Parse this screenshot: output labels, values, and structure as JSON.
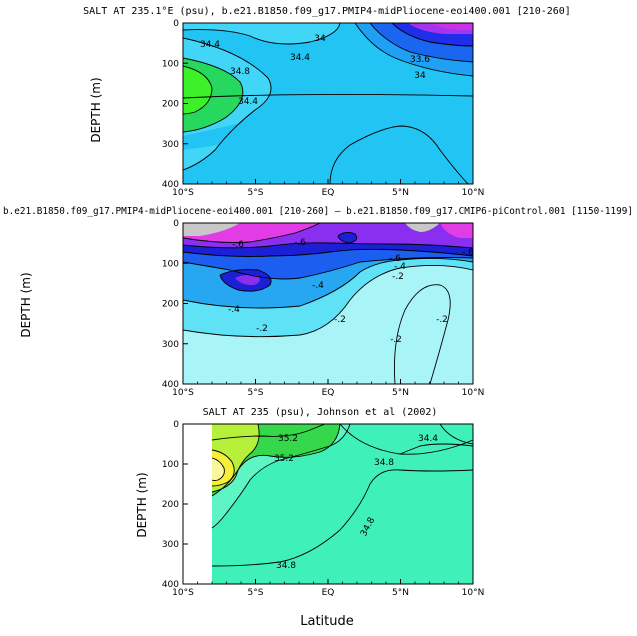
{
  "colors": {
    "salt_fresh_deep": "#c934e8",
    "salt_fresh": "#a334f0",
    "salt_blue_dark": "#1f2ee8",
    "salt_blue": "#1a66f0",
    "salt_azure": "#1fa0f5",
    "salt_sky": "#22c4f4",
    "salt_light": "#41d6f7",
    "salt_green": "#27d85e",
    "salt_lime": "#3cf02a",
    "anom_gray": "#c8c8c8",
    "anom_magenta": "#e23ce6",
    "anom_purple": "#8a2ef0",
    "anom_navy": "#1b20d6",
    "anom_blue": "#1c5ff0",
    "anom_azure": "#27a7f2",
    "anom_sky": "#5fe2f5",
    "anom_pale": "#a8f4f7",
    "obs_green": "#34d84a",
    "obs_lime": "#b6f03a",
    "obs_yellow": "#f5ef3a",
    "obs_teal": "#3ff0b8",
    "obs_mint": "#5ef4c4"
  },
  "chart_data": [
    {
      "type": "contour",
      "title": "SALT AT 235.1°E (psu), b.e21.B1850.f09_g17.PMIP4-midPliocene-eoi400.001 [210-260]",
      "ylabel": "DEPTH (m)",
      "xlabel": "",
      "x_range": [
        -10,
        10
      ],
      "y_range": [
        400,
        0
      ],
      "x_ticks": [
        "10°S",
        "5°S",
        "EQ",
        "5°N",
        "10°N"
      ],
      "y_ticks": [
        "0",
        "100",
        "200",
        "300",
        "400"
      ],
      "contour_levels": [
        "34.4",
        "34",
        "34.4",
        "33.6",
        "34",
        "34.8",
        "34.4"
      ]
    },
    {
      "type": "contour",
      "title": "b.e21.B1850.f09_g17.PMIP4-midPliocene-eoi400.001 [210-260] – b.e21.B1850.f09_g17.CMIP6-piControl.001 [1150-1199]",
      "ylabel": "DEPTH (m)",
      "xlabel": "",
      "x_range": [
        -10,
        10
      ],
      "y_range": [
        400,
        0
      ],
      "x_ticks": [
        "10°S",
        "5°S",
        "EQ",
        "5°N",
        "10°N"
      ],
      "y_ticks": [
        "0",
        "100",
        "200",
        "300",
        "400"
      ],
      "contour_levels": [
        "-.6",
        "-.6",
        "-.6",
        "-.6",
        "-.4",
        "-.2",
        "-.4",
        "-.4",
        "-.2",
        "-.2",
        "-.2",
        "-.2"
      ]
    },
    {
      "type": "contour",
      "title": "SALT AT 235 (psu), Johnson et al (2002)",
      "ylabel": "DEPTH (m)",
      "xlabel": "Latitude",
      "x_range": [
        -10,
        10
      ],
      "y_range": [
        400,
        0
      ],
      "x_ticks": [
        "10°S",
        "5°S",
        "EQ",
        "5°N",
        "10°N"
      ],
      "y_ticks": [
        "0",
        "100",
        "200",
        "300",
        "400"
      ],
      "contour_levels": [
        "35.2",
        "35.2",
        "34.4",
        "34.8",
        "34.8",
        "34.8"
      ]
    }
  ]
}
